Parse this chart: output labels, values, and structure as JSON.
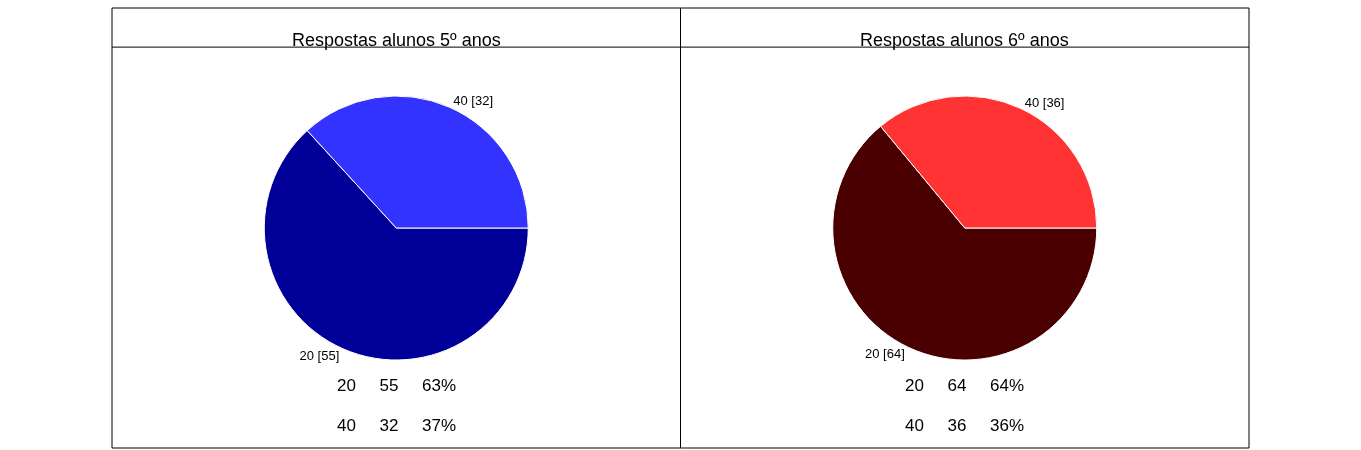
{
  "chart_data": [
    {
      "type": "pie",
      "title": "Respostas alunos 5º anos",
      "categories": [
        "20",
        "40"
      ],
      "values": [
        55,
        32
      ],
      "colors": [
        "#000099",
        "#3333ff"
      ],
      "value_labels": [
        "[55]",
        "[32]"
      ],
      "annotations": [
        "20 55 63%",
        "40 32 37%"
      ]
    },
    {
      "type": "pie",
      "title": "Respostas alunos 6º anos",
      "categories": [
        "20",
        "40"
      ],
      "values": [
        64,
        36
      ],
      "colors": [
        "#4a0000",
        "#ff3333"
      ],
      "value_labels": [
        "[64]",
        "[36]"
      ],
      "annotations": [
        "20 64 64%",
        "40 36 36%"
      ]
    }
  ]
}
